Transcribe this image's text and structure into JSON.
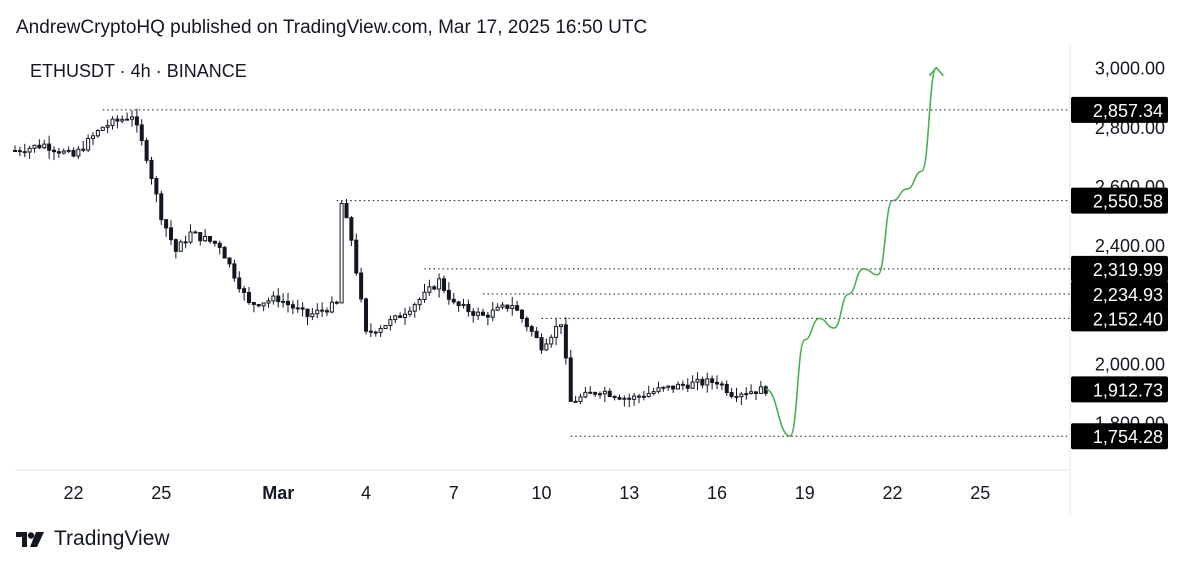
{
  "header": {
    "publisher_line": "AndrewCryptoHQ published on TradingView.com, Mar 17, 2025 16:50 UTC"
  },
  "symbol_line": "ETHUSDT · 4h · BINANCE",
  "footer": {
    "brand": "TradingView"
  },
  "colors": {
    "candle": "#131722",
    "projection": "#4caf50",
    "label_bg": "#000000",
    "label_text": "#ffffff",
    "dotted": "#131722"
  },
  "chart_data": {
    "type": "candlestick",
    "title": "ETHUSDT · 4h · BINANCE",
    "x_tick_labels": [
      "22",
      "25",
      "Mar",
      "4",
      "7",
      "10",
      "13",
      "16",
      "19",
      "22",
      "25"
    ],
    "y_tick_labels": [
      "3,000.00",
      "2,800.00",
      "2,600.00",
      "2,400.00",
      "2,000.00",
      "1,800.00"
    ],
    "y_tick_values": [
      3000,
      2800,
      2600,
      2400,
      2000,
      1800
    ],
    "ylim": [
      1640,
      3080
    ],
    "x_domain_days": [
      "Feb 20, 2025",
      "Mar 28, 2025"
    ],
    "price_labels": [
      {
        "label": "2,857.34",
        "value": 2857.34
      },
      {
        "label": "2,550.58",
        "value": 2550.58
      },
      {
        "label": "2,319.99",
        "value": 2319.99
      },
      {
        "label": "2,234.93",
        "value": 2234.93
      },
      {
        "label": "2,152.40",
        "value": 2152.4
      },
      {
        "label": "1,912.73",
        "value": 1912.73
      },
      {
        "label": "1,754.28",
        "value": 1754.28
      }
    ],
    "horizontal_levels": [
      {
        "value": 2857.34,
        "from_date": "Feb 23"
      },
      {
        "value": 2550.58,
        "from_date": "Mar 3"
      },
      {
        "value": 2319.99,
        "from_date": "Mar 6"
      },
      {
        "value": 2234.93,
        "from_date": "Mar 8"
      },
      {
        "value": 2152.4,
        "from_date": "Mar 10"
      },
      {
        "value": 1754.28,
        "from_date": "Mar 11"
      }
    ],
    "price_path": [
      [
        "Feb 20",
        2720
      ],
      [
        "Feb 21",
        2740
      ],
      [
        "Feb 22",
        2700
      ],
      [
        "Feb 23",
        2800
      ],
      [
        "Feb 24",
        2840
      ],
      [
        "Feb 24 12h",
        2700
      ],
      [
        "Feb 25",
        2500
      ],
      [
        "Feb 25 12h",
        2380
      ],
      [
        "Feb 26",
        2440
      ],
      [
        "Feb 27",
        2400
      ],
      [
        "Feb 28",
        2200
      ],
      [
        "Mar 1",
        2220
      ],
      [
        "Mar 2",
        2160
      ],
      [
        "Mar 3",
        2200
      ],
      [
        "Mar 3 4h",
        2540
      ],
      [
        "Mar 3 12h",
        2420
      ],
      [
        "Mar 4",
        2100
      ],
      [
        "Mar 5",
        2150
      ],
      [
        "Mar 6",
        2230
      ],
      [
        "Mar 6 12h",
        2280
      ],
      [
        "Mar 7",
        2200
      ],
      [
        "Mar 8",
        2160
      ],
      [
        "Mar 9",
        2200
      ],
      [
        "Mar 9 12h",
        2130
      ],
      [
        "Mar 10",
        2060
      ],
      [
        "Mar 10 16h",
        2140
      ],
      [
        "Mar 11",
        1870
      ],
      [
        "Mar 12",
        1910
      ],
      [
        "Mar 13",
        1880
      ],
      [
        "Mar 14",
        1910
      ],
      [
        "Mar 15",
        1930
      ],
      [
        "Mar 16",
        1940
      ],
      [
        "Mar 16 12h",
        1900
      ],
      [
        "Mar 17 16h",
        1912.73
      ]
    ],
    "projection_path": [
      [
        "Mar 17 16h",
        1912.73
      ],
      [
        "Mar 18 12h",
        1754.28
      ],
      [
        "Mar 19",
        2080
      ],
      [
        "Mar 19 12h",
        2152.4
      ],
      [
        "Mar 20",
        2120
      ],
      [
        "Mar 20 12h",
        2234.93
      ],
      [
        "Mar 21",
        2319.99
      ],
      [
        "Mar 21 12h",
        2300
      ],
      [
        "Mar 22",
        2550.58
      ],
      [
        "Mar 22 12h",
        2590
      ],
      [
        "Mar 23",
        2650
      ],
      [
        "Mar 23 12h",
        3000
      ]
    ]
  }
}
